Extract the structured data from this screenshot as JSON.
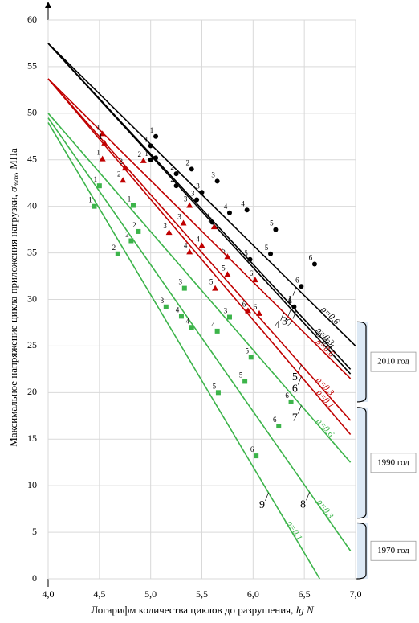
{
  "chart_data": {
    "type": "scatter",
    "y_label": [
      "Максимальное напряжение цикла приложения нагрузки, ",
      "σ",
      "max",
      ", МПа"
    ],
    "x_label": [
      "Логарифм количества циклов до разрушения, ",
      "lg N"
    ],
    "xlim": [
      4,
      7
    ],
    "ylim": [
      0,
      60
    ],
    "xticks": [
      {
        "value": 4,
        "label": "4,0"
      },
      {
        "value": 4.5,
        "label": "4,5"
      },
      {
        "value": 5,
        "label": "5,0"
      },
      {
        "value": 5.5,
        "label": "5,5"
      },
      {
        "value": 6,
        "label": "6,0"
      },
      {
        "value": 6.5,
        "label": "6,5"
      },
      {
        "value": 7,
        "label": "7,0"
      }
    ],
    "yticks": [
      0,
      5,
      10,
      15,
      20,
      25,
      30,
      35,
      40,
      45,
      50,
      55,
      60
    ],
    "grid": true,
    "lines": [
      {
        "label": "1",
        "rho": "ρ=0,6",
        "color": "#000000",
        "x": [
          4,
          7
        ],
        "y": [
          57.5,
          25
        ]
      },
      {
        "label": "2",
        "rho": "ρ=0,3",
        "color": "#000000",
        "x": [
          4,
          6.95
        ],
        "y": [
          57.5,
          22.5
        ]
      },
      {
        "label": "3",
        "rho": "ρ=0,1",
        "color": "#000000",
        "x": [
          4,
          6.95
        ],
        "y": [
          57.5,
          22
        ]
      },
      {
        "label": "4",
        "rho": "ρ=0,6",
        "color": "#c00000",
        "x": [
          4,
          6.95
        ],
        "y": [
          53.7,
          21.5
        ]
      },
      {
        "label": "5",
        "rho": "ρ=0,3",
        "color": "#c00000",
        "x": [
          4,
          6.95
        ],
        "y": [
          53.7,
          17
        ]
      },
      {
        "label": "6",
        "rho": "ρ=0,1",
        "color": "#c00000",
        "x": [
          4,
          6.95
        ],
        "y": [
          53.7,
          15.5
        ]
      },
      {
        "label": "7",
        "rho": "ρ=0,6",
        "color": "#3cb44a",
        "x": [
          4,
          6.95
        ],
        "y": [
          50,
          12.5
        ]
      },
      {
        "label": "8",
        "rho": "ρ=0,3",
        "color": "#3cb44a",
        "x": [
          4,
          6.95
        ],
        "y": [
          49.5,
          3
        ]
      },
      {
        "label": "9",
        "rho": "ρ=0,1",
        "color": "#3cb44a",
        "x": [
          4,
          6.65
        ],
        "y": [
          49,
          0
        ]
      }
    ],
    "series": [
      {
        "marker": "circle",
        "color": "#000000",
        "x": [
          5.05,
          5.0,
          5.0,
          5.05,
          5.4,
          5.25,
          5.25,
          5.45,
          5.65,
          5.5,
          5.6,
          5.77,
          5.94,
          6.22,
          5.97,
          6.17,
          6.47,
          6.6,
          6.4
        ],
        "values": [
          47.5,
          46.5,
          45,
          45.2,
          44,
          43.5,
          42.2,
          40.7,
          42.7,
          41.5,
          38.3,
          39.3,
          39.6,
          37.5,
          34.3,
          34.9,
          31.4,
          33.8,
          29.2
        ],
        "point_labels": [
          "1",
          "1",
          "1",
          null,
          "2",
          "2",
          "2",
          "3",
          "3",
          "3",
          "4",
          "4",
          "4",
          "5",
          "5",
          "5",
          "6",
          "6",
          "6"
        ]
      },
      {
        "marker": "triangle",
        "color": "#c00000",
        "x": [
          4.53,
          4.55,
          4.53,
          4.75,
          4.93,
          4.73,
          5.32,
          5.38,
          5.18,
          5.38,
          5.5,
          5.62,
          5.63,
          5.75,
          5.75,
          6.02,
          5.95,
          6.06
        ],
        "values": [
          47.8,
          46.8,
          45.1,
          44.1,
          44.9,
          42.8,
          38.2,
          40.1,
          37.2,
          35.1,
          35.8,
          37.8,
          31.2,
          32.7,
          34.6,
          32.1,
          28.8,
          28.5
        ],
        "point_labels": [
          "1",
          "1",
          "1",
          "2",
          "2",
          "2",
          "3",
          "3",
          "3",
          "4",
          "4",
          "4",
          "5",
          "5",
          "5",
          "6",
          "6",
          "6"
        ]
      },
      {
        "marker": "square",
        "color": "#3cb44a",
        "x": [
          4.45,
          4.5,
          4.83,
          4.68,
          4.88,
          4.81,
          5.15,
          5.33,
          5.77,
          5.3,
          5.4,
          5.65,
          5.66,
          5.98,
          5.92,
          6.03,
          6.25,
          6.37
        ],
        "values": [
          40,
          42.2,
          40.1,
          34.9,
          37.3,
          36.3,
          29.2,
          31.2,
          28.1,
          28.2,
          27,
          26.6,
          20,
          23.8,
          21.2,
          13.2,
          16.4,
          19
        ],
        "point_labels": [
          "1",
          "1",
          "1",
          "2",
          "2",
          "2",
          "3",
          "3",
          "3",
          "4",
          "4",
          "4",
          "5",
          "5",
          "5",
          "6",
          "6",
          "6"
        ]
      }
    ],
    "groups": [
      {
        "label": "2010 год",
        "range": [
          19,
          27.6
        ]
      },
      {
        "label": "1990 год",
        "range": [
          6.5,
          18.4
        ]
      },
      {
        "label": "1970 год",
        "range": [
          0,
          6
        ]
      }
    ]
  }
}
